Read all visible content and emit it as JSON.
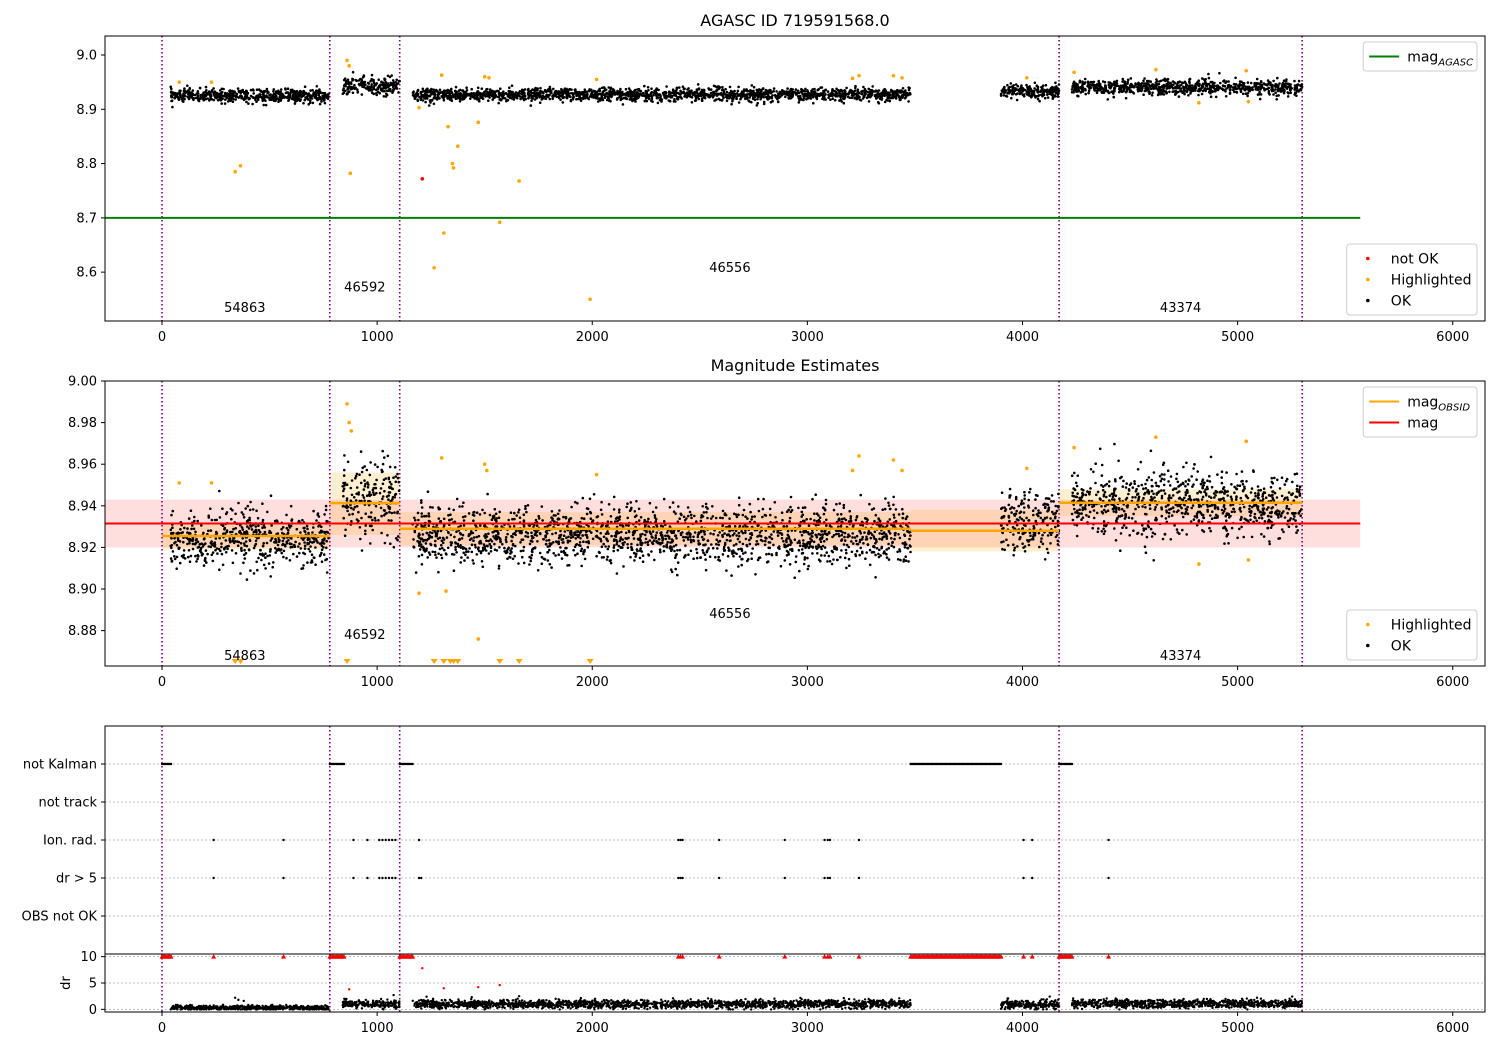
{
  "chart_data": [
    {
      "type": "scatter",
      "title": "AGASC ID 719591568.0",
      "xlim": [
        -265,
        6150
      ],
      "ylim": [
        8.51,
        9.035
      ],
      "xticks": [
        0,
        1000,
        2000,
        3000,
        4000,
        5000,
        6000
      ],
      "yticks": [
        8.6,
        8.7,
        8.8,
        8.9,
        9.0
      ],
      "ytick_labels": [
        "8.6",
        "8.7",
        "8.8",
        "8.9",
        "9.0"
      ],
      "grid": false,
      "obsid_boundaries": [
        0,
        780,
        1105,
        4170,
        5300
      ],
      "obsid_labels": [
        {
          "text": "54863",
          "x": 385,
          "y": 8.527
        },
        {
          "text": "46592",
          "x": 943,
          "y": 8.564
        },
        {
          "text": "46556",
          "x": 2640,
          "y": 8.6
        },
        {
          "text": "43374",
          "x": 4735,
          "y": 8.527
        }
      ],
      "lines": [
        {
          "name": "mag_AGASC",
          "color": "#008000",
          "x": [
            -265,
            5570
          ],
          "y": [
            8.7,
            8.7
          ]
        }
      ],
      "ok_segments": [
        {
          "x": [
            40,
            775
          ],
          "y": 8.925,
          "spread": 0.006
        },
        {
          "x": [
            840,
            1105
          ],
          "y": 8.943,
          "spread": 0.008
        },
        {
          "x": [
            1165,
            3480
          ],
          "y": 8.927,
          "spread": 0.006
        },
        {
          "x": [
            3900,
            4170
          ],
          "y": 8.933,
          "spread": 0.006
        },
        {
          "x": [
            4230,
            5300
          ],
          "y": 8.94,
          "spread": 0.007
        }
      ],
      "highlighted": [
        [
          80,
          8.95
        ],
        [
          230,
          8.95
        ],
        [
          340,
          8.785
        ],
        [
          365,
          8.796
        ],
        [
          860,
          8.99
        ],
        [
          870,
          8.98
        ],
        [
          875,
          8.782
        ],
        [
          1195,
          8.903
        ],
        [
          1265,
          8.608
        ],
        [
          1300,
          8.963
        ],
        [
          1310,
          8.672
        ],
        [
          1330,
          8.868
        ],
        [
          1350,
          8.8
        ],
        [
          1355,
          8.792
        ],
        [
          1375,
          8.832
        ],
        [
          1470,
          8.876
        ],
        [
          1500,
          8.96
        ],
        [
          1520,
          8.958
        ],
        [
          1660,
          8.768
        ],
        [
          1570,
          8.692
        ],
        [
          1990,
          8.55
        ],
        [
          2020,
          8.955
        ],
        [
          3210,
          8.957
        ],
        [
          3240,
          8.962
        ],
        [
          3400,
          8.962
        ],
        [
          3440,
          8.958
        ],
        [
          4020,
          8.958
        ],
        [
          4240,
          8.968
        ],
        [
          4620,
          8.973
        ],
        [
          4820,
          8.912
        ],
        [
          5040,
          8.971
        ],
        [
          5050,
          8.914
        ]
      ],
      "not_ok": [
        [
          1210,
          8.772
        ]
      ],
      "legends": [
        {
          "placement": "upper right",
          "entries": [
            {
              "label": "mag_AGASC",
              "kind": "line",
              "color": "#008000"
            }
          ]
        },
        {
          "placement": "lower right",
          "entries": [
            {
              "label": "not OK",
              "kind": "point",
              "color": "#ff0000"
            },
            {
              "label": "Highlighted",
              "kind": "point",
              "color": "#ffa500"
            },
            {
              "label": "OK",
              "kind": "point",
              "color": "#000000"
            }
          ]
        }
      ]
    },
    {
      "type": "scatter",
      "title": "Magnitude Estimates",
      "xlim": [
        -265,
        6150
      ],
      "ylim": [
        8.863,
        9.0
      ],
      "xticks": [
        0,
        1000,
        2000,
        3000,
        4000,
        5000,
        6000
      ],
      "yticks": [
        8.88,
        8.9,
        8.92,
        8.94,
        8.96,
        8.98,
        9.0
      ],
      "ytick_labels": [
        "8.88",
        "8.90",
        "8.92",
        "8.94",
        "8.96",
        "8.98",
        "9.00"
      ],
      "grid": false,
      "obsid_boundaries": [
        0,
        780,
        1105,
        4170,
        5300
      ],
      "obsid_labels": [
        {
          "text": "54863",
          "x": 385,
          "y": 8.866
        },
        {
          "text": "46592",
          "x": 943,
          "y": 8.876
        },
        {
          "text": "46556",
          "x": 2640,
          "y": 8.886
        },
        {
          "text": "43374",
          "x": 4735,
          "y": 8.866
        }
      ],
      "mag": {
        "value": 8.9315,
        "band": [
          8.92,
          8.943
        ],
        "x": [
          -265,
          5570
        ],
        "color": "#ff0000"
      },
      "mag_obsid": [
        {
          "x": [
            0,
            780
          ],
          "value": 8.9255,
          "band": [
            8.919,
            8.932
          ]
        },
        {
          "x": [
            780,
            1105
          ],
          "value": 8.9413,
          "band": [
            8.926,
            8.956
          ]
        },
        {
          "x": [
            1105,
            3480
          ],
          "value": 8.929,
          "band": [
            8.921,
            8.937
          ]
        },
        {
          "x": [
            3480,
            4170
          ],
          "value": 8.928,
          "band": [
            8.918,
            8.938
          ]
        },
        {
          "x": [
            4170,
            5300
          ],
          "value": 8.9415,
          "band": [
            8.935,
            8.948
          ]
        }
      ],
      "ok_segments": [
        {
          "x": [
            40,
            775
          ],
          "y": 8.924,
          "spread": 0.007
        },
        {
          "x": [
            840,
            1105
          ],
          "y": 8.943,
          "spread": 0.009
        },
        {
          "x": [
            1165,
            3480
          ],
          "y": 8.926,
          "spread": 0.007
        },
        {
          "x": [
            3900,
            4170
          ],
          "y": 8.932,
          "spread": 0.007
        },
        {
          "x": [
            4230,
            5300
          ],
          "y": 8.941,
          "spread": 0.008
        }
      ],
      "highlighted": [
        [
          80,
          8.951
        ],
        [
          230,
          8.951
        ],
        [
          860,
          8.989
        ],
        [
          870,
          8.98
        ],
        [
          880,
          8.976
        ],
        [
          1195,
          8.898
        ],
        [
          1300,
          8.963
        ],
        [
          1320,
          8.899
        ],
        [
          1470,
          8.876
        ],
        [
          1500,
          8.96
        ],
        [
          1510,
          8.957
        ],
        [
          2020,
          8.955
        ],
        [
          3210,
          8.957
        ],
        [
          3240,
          8.964
        ],
        [
          3400,
          8.962
        ],
        [
          3440,
          8.957
        ],
        [
          4020,
          8.958
        ],
        [
          4240,
          8.968
        ],
        [
          4620,
          8.973
        ],
        [
          4820,
          8.912
        ],
        [
          5040,
          8.971
        ],
        [
          5050,
          8.914
        ]
      ],
      "below_range": [
        340,
        365,
        860,
        1265,
        1310,
        1340,
        1355,
        1375,
        1570,
        1660,
        1990
      ],
      "legends": [
        {
          "placement": "upper right",
          "entries": [
            {
              "label": "mag_OBSID",
              "kind": "line",
              "color": "#ffa500"
            },
            {
              "label": "mag",
              "kind": "line",
              "color": "#ff0000"
            }
          ]
        },
        {
          "placement": "lower right",
          "entries": [
            {
              "label": "Highlighted",
              "kind": "point",
              "color": "#ffa500"
            },
            {
              "label": "OK",
              "kind": "point",
              "color": "#000000"
            }
          ]
        }
      ]
    },
    {
      "type": "scatter",
      "title": "",
      "xlim": [
        -265,
        6150
      ],
      "rows": [
        "not Kalman",
        "not track",
        "Ion. rad.",
        "dr > 5",
        "OBS not OK"
      ],
      "grid": true,
      "obsid_boundaries": [
        0,
        780,
        1105,
        4170,
        5300
      ],
      "flags": {
        "not Kalman": [
          [
            0,
            45
          ],
          [
            780,
            850
          ],
          [
            1105,
            1170
          ],
          [
            3480,
            3900
          ],
          [
            4170,
            4230
          ]
        ],
        "not track": [],
        "Ion. rad.": [
          240,
          565,
          890,
          955,
          1010,
          1025,
          1040,
          1055,
          1070,
          1085,
          1195,
          2400,
          2410,
          2420,
          2590,
          2895,
          3080,
          3095,
          3105,
          3240,
          4005,
          4045,
          4400
        ],
        "dr > 5": [
          240,
          565,
          890,
          955,
          1010,
          1025,
          1040,
          1055,
          1070,
          1085,
          1195,
          1205,
          2400,
          2410,
          2420,
          2590,
          2895,
          3080,
          3095,
          3105,
          3240,
          4005,
          4045,
          4400
        ],
        "OBS not OK": []
      }
    },
    {
      "type": "scatter",
      "title": "",
      "ylabel": "dr",
      "xlim": [
        -265,
        6150
      ],
      "ylim": [
        -0.5,
        10.5
      ],
      "xticks": [
        0,
        1000,
        2000,
        3000,
        4000,
        5000,
        6000
      ],
      "yticks": [
        0,
        5,
        10
      ],
      "grid": true,
      "obsid_boundaries": [
        0,
        780,
        1105,
        4170,
        5300
      ],
      "ok_segments": [
        {
          "x": [
            40,
            775
          ],
          "y": 0.3,
          "spread": 0.2
        },
        {
          "x": [
            840,
            1105
          ],
          "y": 1.0,
          "spread": 0.4
        },
        {
          "x": [
            1165,
            3480
          ],
          "y": 1.0,
          "spread": 0.4
        },
        {
          "x": [
            3900,
            4170
          ],
          "y": 0.9,
          "spread": 0.4
        },
        {
          "x": [
            4230,
            5300
          ],
          "y": 1.1,
          "spread": 0.4
        }
      ],
      "clipped": [
        [
          0,
          45
        ],
        [
          780,
          850
        ],
        [
          1105,
          1170
        ],
        [
          3480,
          3900
        ],
        [
          4170,
          4230
        ]
      ],
      "clipped_single": [
        240,
        565,
        2400,
        2410,
        2420,
        2590,
        2895,
        3080,
        3095,
        3105,
        3240,
        4005,
        4045,
        4400
      ],
      "extra_ok": [
        [
          340,
          2.2
        ],
        [
          355,
          1.8
        ],
        [
          380,
          1.6
        ],
        [
          1230,
          2.4
        ],
        [
          1260,
          1.9
        ],
        [
          1440,
          2.3
        ],
        [
          1660,
          2.5
        ],
        [
          1830,
          2.0
        ]
      ],
      "extra_red": [
        [
          1210,
          7.8
        ],
        [
          870,
          3.8
        ],
        [
          1310,
          4.0
        ],
        [
          1470,
          4.2
        ],
        [
          1570,
          4.6
        ]
      ]
    }
  ]
}
